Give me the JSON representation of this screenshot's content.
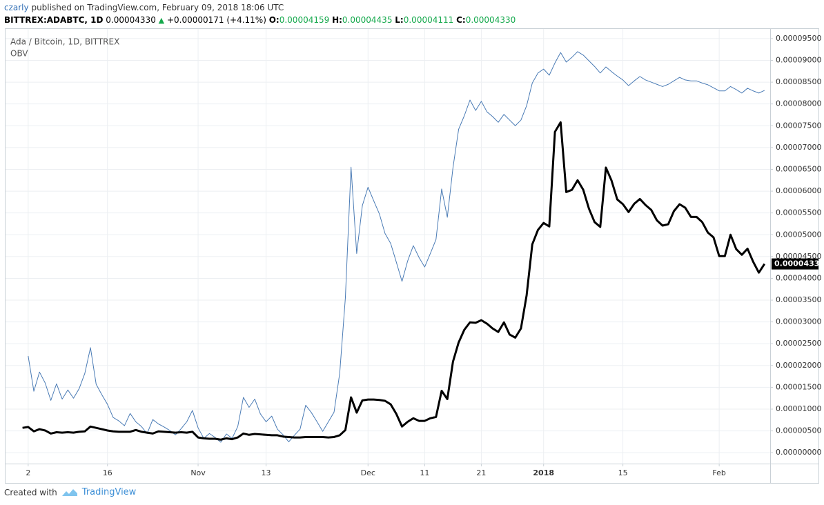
{
  "header": {
    "author": "czarly",
    "published": "published on TradingView.com, February 09, 2018 18:06 UTC",
    "symbol": "BITTREX:ADABTC, 1D",
    "last": "0.00004330",
    "change": "+0.00000171 (+4.11%)",
    "open_label": "O:",
    "open": "0.00004159",
    "high_label": "H:",
    "high": "0.00004435",
    "low_label": "L:",
    "low": "0.00004111",
    "close_label": "C:",
    "close": "0.00004330"
  },
  "footer": {
    "created": "Created with",
    "brand": "TradingView"
  },
  "chart_data": {
    "type": "line",
    "title": "Ada / Bitcoin, 1D, BITTREX",
    "x": [
      "2017-10-01",
      "2017-10-02",
      "2017-10-03",
      "2017-10-04",
      "2017-10-05",
      "2017-10-06",
      "2017-10-07",
      "2017-10-08",
      "2017-10-09",
      "2017-10-10",
      "2017-10-11",
      "2017-10-12",
      "2017-10-13",
      "2017-10-14",
      "2017-10-15",
      "2017-10-16",
      "2017-10-17",
      "2017-10-18",
      "2017-10-19",
      "2017-10-20",
      "2017-10-21",
      "2017-10-22",
      "2017-10-23",
      "2017-10-24",
      "2017-10-25",
      "2017-10-26",
      "2017-10-27",
      "2017-10-28",
      "2017-10-29",
      "2017-10-30",
      "2017-10-31",
      "2017-11-01",
      "2017-11-02",
      "2017-11-03",
      "2017-11-04",
      "2017-11-05",
      "2017-11-06",
      "2017-11-07",
      "2017-11-08",
      "2017-11-09",
      "2017-11-10",
      "2017-11-11",
      "2017-11-12",
      "2017-11-13",
      "2017-11-14",
      "2017-11-15",
      "2017-11-16",
      "2017-11-17",
      "2017-11-18",
      "2017-11-19",
      "2017-11-20",
      "2017-11-21",
      "2017-11-22",
      "2017-11-23",
      "2017-11-24",
      "2017-11-25",
      "2017-11-26",
      "2017-11-27",
      "2017-11-28",
      "2017-11-29",
      "2017-11-30",
      "2017-12-01",
      "2017-12-02",
      "2017-12-03",
      "2017-12-04",
      "2017-12-05",
      "2017-12-06",
      "2017-12-07",
      "2017-12-08",
      "2017-12-09",
      "2017-12-10",
      "2017-12-11",
      "2017-12-12",
      "2017-12-13",
      "2017-12-14",
      "2017-12-15",
      "2017-12-16",
      "2017-12-17",
      "2017-12-18",
      "2017-12-19",
      "2017-12-20",
      "2017-12-21",
      "2017-12-22",
      "2017-12-23",
      "2017-12-24",
      "2017-12-25",
      "2017-12-26",
      "2017-12-27",
      "2017-12-28",
      "2017-12-29",
      "2017-12-30",
      "2017-12-31",
      "2018-01-01",
      "2018-01-02",
      "2018-01-03",
      "2018-01-04",
      "2018-01-05",
      "2018-01-06",
      "2018-01-07",
      "2018-01-08",
      "2018-01-09",
      "2018-01-10",
      "2018-01-11",
      "2018-01-12",
      "2018-01-13",
      "2018-01-14",
      "2018-01-15",
      "2018-01-16",
      "2018-01-17",
      "2018-01-18",
      "2018-01-19",
      "2018-01-20",
      "2018-01-21",
      "2018-01-22",
      "2018-01-23",
      "2018-01-24",
      "2018-01-25",
      "2018-01-26",
      "2018-01-27",
      "2018-01-28",
      "2018-01-29",
      "2018-01-30",
      "2018-01-31",
      "2018-02-01",
      "2018-02-02",
      "2018-02-03",
      "2018-02-04",
      "2018-02-05",
      "2018-02-06",
      "2018-02-07",
      "2018-02-08",
      "2018-02-09"
    ],
    "series": [
      {
        "name": "Ada / Bitcoin",
        "color": "#000000",
        "width": 3,
        "values": [
          5.7e-06,
          5.9e-06,
          4.9e-06,
          5.4e-06,
          5.1e-06,
          4.4e-06,
          4.7e-06,
          4.6e-06,
          4.7e-06,
          4.6e-06,
          4.8e-06,
          4.9e-06,
          6e-06,
          5.7e-06,
          5.4e-06,
          5.1e-06,
          4.9e-06,
          4.8e-06,
          4.8e-06,
          4.8e-06,
          5.2e-06,
          4.8e-06,
          4.6e-06,
          4.4e-06,
          4.9e-06,
          4.8e-06,
          4.7e-06,
          4.6e-06,
          4.7e-06,
          4.6e-06,
          4.8e-06,
          3.5e-06,
          3.3e-06,
          3.2e-06,
          3.2e-06,
          3e-06,
          3.3e-06,
          3.1e-06,
          3.5e-06,
          4.4e-06,
          4.1e-06,
          4.3e-06,
          4.2e-06,
          4.1e-06,
          4e-06,
          4e-06,
          3.7e-06,
          3.6e-06,
          3.5e-06,
          3.5e-06,
          3.6e-06,
          3.6e-06,
          3.6e-06,
          3.6e-06,
          3.5e-06,
          3.6e-06,
          4e-06,
          5.2e-06,
          1.27e-05,
          9.2e-06,
          1.2e-05,
          1.22e-05,
          1.22e-05,
          1.21e-05,
          1.19e-05,
          1.11e-05,
          8.9e-06,
          6e-06,
          7.1e-06,
          7.9e-06,
          7.3e-06,
          7.3e-06,
          7.9e-06,
          8.2e-06,
          1.42e-05,
          1.23e-05,
          2.09e-05,
          2.53e-05,
          2.82e-05,
          2.99e-05,
          2.98e-05,
          3.04e-05,
          2.96e-05,
          2.85e-05,
          2.77e-05,
          2.99e-05,
          2.71e-05,
          2.64e-05,
          2.85e-05,
          3.61e-05,
          4.78e-05,
          5.11e-05,
          5.27e-05,
          5.19e-05,
          7.36e-05,
          7.58e-05,
          5.98e-05,
          6.03e-05,
          6.25e-05,
          6.03e-05,
          5.6e-05,
          5.29e-05,
          5.18e-05,
          6.54e-05,
          6.24e-05,
          5.81e-05,
          5.7e-05,
          5.52e-05,
          5.71e-05,
          5.82e-05,
          5.68e-05,
          5.57e-05,
          5.33e-05,
          5.21e-05,
          5.24e-05,
          5.54e-05,
          5.7e-05,
          5.62e-05,
          5.41e-05,
          5.41e-05,
          5.29e-05,
          5.05e-05,
          4.94e-05,
          4.51e-05,
          4.51e-05,
          5e-05,
          4.67e-05,
          4.54e-05,
          4.68e-05,
          4.38e-05,
          4.13e-05,
          4.33e-05
        ]
      },
      {
        "name": "OBV",
        "color": "#4a7bb5",
        "width": 1,
        "values": [
          null,
          2.22e-05,
          1.41e-05,
          1.85e-05,
          1.6e-05,
          1.2e-05,
          1.58e-05,
          1.23e-05,
          1.44e-05,
          1.25e-05,
          1.47e-05,
          1.82e-05,
          2.41e-05,
          1.57e-05,
          1.33e-05,
          1.11e-05,
          8.1e-06,
          7.3e-06,
          6.2e-06,
          9e-06,
          7.1e-06,
          6e-06,
          4.4e-06,
          7.6e-06,
          6.6e-06,
          5.9e-06,
          5.1e-06,
          4.1e-06,
          5.5e-06,
          7.1e-06,
          9.7e-06,
          5.7e-06,
          3.3e-06,
          4.4e-06,
          3.5e-06,
          2.4e-06,
          4.3e-06,
          3.3e-06,
          6e-06,
          1.27e-05,
          1.04e-05,
          1.23e-05,
          8.9e-06,
          7.1e-06,
          8.4e-06,
          5.4e-06,
          4.1e-06,
          2.5e-06,
          4e-06,
          5.4e-06,
          1.09e-05,
          9.2e-06,
          7.1e-06,
          4.9e-06,
          7.1e-06,
          9.3e-06,
          1.82e-05,
          3.55e-05,
          6.55e-05,
          4.57e-05,
          5.67e-05,
          6.09e-05,
          5.78e-05,
          5.48e-05,
          5.03e-05,
          4.8e-05,
          4.37e-05,
          3.93e-05,
          4.4e-05,
          4.75e-05,
          4.48e-05,
          4.26e-05,
          4.57e-05,
          4.89e-05,
          6.05e-05,
          5.4e-05,
          6.54e-05,
          7.42e-05,
          7.73e-05,
          8.09e-05,
          7.85e-05,
          8.06e-05,
          7.82e-05,
          7.71e-05,
          7.58e-05,
          7.76e-05,
          7.63e-05,
          7.5e-05,
          7.63e-05,
          7.96e-05,
          8.48e-05,
          8.71e-05,
          8.8e-05,
          8.66e-05,
          8.94e-05,
          9.18e-05,
          8.96e-05,
          9.07e-05,
          9.2e-05,
          9.12e-05,
          8.99e-05,
          8.86e-05,
          8.71e-05,
          8.85e-05,
          8.74e-05,
          8.64e-05,
          8.55e-05,
          8.42e-05,
          8.53e-05,
          8.63e-05,
          8.55e-05,
          8.5e-05,
          8.45e-05,
          8.4e-05,
          8.45e-05,
          8.53e-05,
          8.61e-05,
          8.55e-05,
          8.53e-05,
          8.53e-05,
          8.48e-05,
          8.44e-05,
          8.37e-05,
          8.3e-05,
          8.3e-05,
          8.4e-05,
          8.33e-05,
          8.25e-05,
          8.36e-05,
          8.3e-05,
          8.25e-05,
          8.31e-05
        ]
      }
    ],
    "xlim": [
      "2017-09-28",
      "2018-02-10"
    ],
    "xticks": [
      {
        "value": "2017-10-02",
        "label": "2"
      },
      {
        "value": "2017-10-16",
        "label": "16"
      },
      {
        "value": "2017-11-01",
        "label": "Nov"
      },
      {
        "value": "2017-11-13",
        "label": "13"
      },
      {
        "value": "2017-12-01",
        "label": "Dec"
      },
      {
        "value": "2017-12-11",
        "label": "11"
      },
      {
        "value": "2017-12-21",
        "label": "21"
      },
      {
        "value": "2018-01-01",
        "label": "2018"
      },
      {
        "value": "2018-01-15",
        "label": "15"
      },
      {
        "value": "2018-02-01",
        "label": "Feb"
      }
    ],
    "ylim": [
      -2.5e-06,
      9.72e-05
    ],
    "yticks": [
      {
        "value": 0,
        "label": "0.00000000"
      },
      {
        "value": 5e-06,
        "label": "0.00000500"
      },
      {
        "value": 1e-05,
        "label": "0.00001000"
      },
      {
        "value": 1.5e-05,
        "label": "0.00001500"
      },
      {
        "value": 2e-05,
        "label": "0.00002000"
      },
      {
        "value": 2.5e-05,
        "label": "0.00002500"
      },
      {
        "value": 3e-05,
        "label": "0.00003000"
      },
      {
        "value": 3.5e-05,
        "label": "0.00003500"
      },
      {
        "value": 4e-05,
        "label": "0.00004000"
      },
      {
        "value": 4.5e-05,
        "label": "0.00004500"
      },
      {
        "value": 5e-05,
        "label": "0.00005000"
      },
      {
        "value": 5.5e-05,
        "label": "0.00005500"
      },
      {
        "value": 6e-05,
        "label": "0.00006000"
      },
      {
        "value": 6.5e-05,
        "label": "0.00006500"
      },
      {
        "value": 7e-05,
        "label": "0.00007000"
      },
      {
        "value": 7.5e-05,
        "label": "0.00007500"
      },
      {
        "value": 8e-05,
        "label": "0.00008000"
      },
      {
        "value": 8.5e-05,
        "label": "0.00008500"
      },
      {
        "value": 9e-05,
        "label": "0.00009000"
      },
      {
        "value": 9.5e-05,
        "label": "0.00009500"
      }
    ],
    "grid": true,
    "grid_color": "#eceff2"
  }
}
